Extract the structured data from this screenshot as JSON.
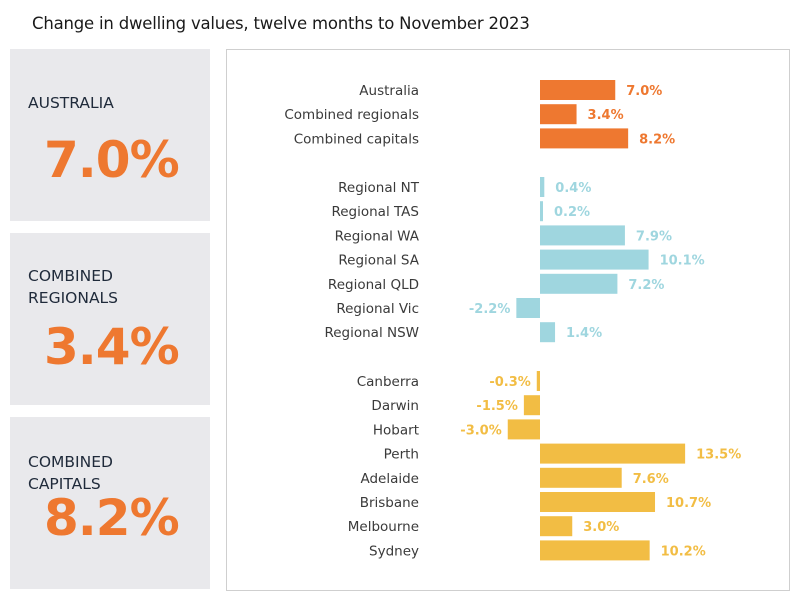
{
  "title": "Change in dwelling values, twelve months to November 2023",
  "cards": [
    {
      "label": "AUSTRALIA",
      "value": "7.0%"
    },
    {
      "label": "COMBINED\nREGIONALS",
      "value": "3.4%"
    },
    {
      "label": "COMBINED\nCAPITALS",
      "value": "8.2%"
    }
  ],
  "colors": {
    "aggregate": "#ee7830",
    "regional": "#9fd6df",
    "capital": "#f2bd44",
    "card_value": "#ee7830",
    "card_bg": "#e9e9ec"
  },
  "chart_data": {
    "type": "bar",
    "orientation": "horizontal",
    "title": "Change in dwelling values, twelve months to November 2023",
    "xlabel": "",
    "ylabel": "",
    "unit": "%",
    "grid": false,
    "groups": [
      {
        "color_key": "aggregate",
        "items": [
          {
            "label": "Australia",
            "value": 7.0,
            "display": "7.0%"
          },
          {
            "label": "Combined regionals",
            "value": 3.4,
            "display": "3.4%"
          },
          {
            "label": "Combined capitals",
            "value": 8.2,
            "display": "8.2%"
          }
        ]
      },
      {
        "color_key": "regional",
        "items": [
          {
            "label": "Regional NT",
            "value": 0.4,
            "display": "0.4%"
          },
          {
            "label": "Regional TAS",
            "value": 0.2,
            "display": "0.2%"
          },
          {
            "label": "Regional WA",
            "value": 7.9,
            "display": "7.9%"
          },
          {
            "label": "Regional SA",
            "value": 10.1,
            "display": "10.1%"
          },
          {
            "label": "Regional QLD",
            "value": 7.2,
            "display": "7.2%"
          },
          {
            "label": "Regional Vic",
            "value": -2.2,
            "display": "-2.2%"
          },
          {
            "label": "Regional NSW",
            "value": 1.4,
            "display": "1.4%"
          }
        ]
      },
      {
        "color_key": "capital",
        "items": [
          {
            "label": "Canberra",
            "value": -0.3,
            "display": "-0.3%"
          },
          {
            "label": "Darwin",
            "value": -1.5,
            "display": "-1.5%"
          },
          {
            "label": "Hobart",
            "value": -3.0,
            "display": "-3.0%"
          },
          {
            "label": "Perth",
            "value": 13.5,
            "display": "13.5%"
          },
          {
            "label": "Adelaide",
            "value": 7.6,
            "display": "7.6%"
          },
          {
            "label": "Brisbane",
            "value": 10.7,
            "display": "10.7%"
          },
          {
            "label": "Melbourne",
            "value": 3.0,
            "display": "3.0%"
          },
          {
            "label": "Sydney",
            "value": 10.2,
            "display": "10.2%"
          }
        ]
      }
    ]
  }
}
